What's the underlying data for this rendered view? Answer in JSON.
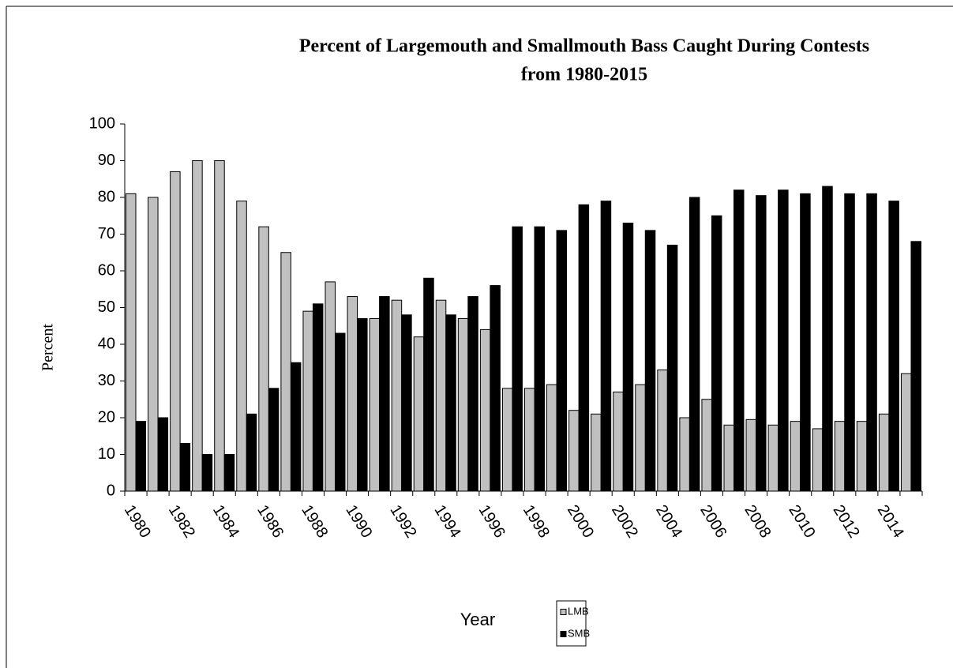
{
  "chart_data": {
    "type": "bar",
    "title": [
      "Percent of Largemouth and Smallmouth Bass Caught During Contests",
      "from 1980-2015"
    ],
    "x_label": "Year",
    "y_label": "Percent",
    "categories": [
      "1980",
      null,
      "1982",
      null,
      "1984",
      null,
      "1986",
      null,
      "1988",
      null,
      "1990",
      null,
      "1992",
      null,
      "1994",
      null,
      "1996",
      null,
      "1998",
      null,
      "2000",
      null,
      "2002",
      null,
      "2004",
      null,
      "2006",
      null,
      "2008",
      null,
      "2010",
      null,
      "2012",
      null,
      "2014",
      null
    ],
    "series": [
      {
        "name": "LMB",
        "color": "#c0c0c0",
        "values": [
          81,
          80,
          87,
          90,
          90,
          79,
          72,
          65,
          49,
          57,
          53,
          47,
          52,
          42,
          52,
          47,
          44,
          28,
          28,
          29,
          22,
          21,
          27,
          29,
          33,
          20,
          25,
          18,
          19.5,
          18,
          19,
          17,
          19,
          19,
          21,
          32
        ]
      },
      {
        "name": "SMB",
        "color": "#000000",
        "values": [
          19,
          20,
          13,
          10,
          10,
          21,
          28,
          35,
          51,
          43,
          47,
          53,
          48,
          58,
          48,
          53,
          56,
          72,
          72,
          71,
          78,
          79,
          73,
          71,
          67,
          80,
          75,
          82,
          80.5,
          82,
          81,
          83,
          81,
          81,
          79,
          68
        ]
      }
    ],
    "ylim": [
      0,
      100
    ],
    "yticks": [
      0,
      10,
      20,
      30,
      40,
      50,
      60,
      70,
      80,
      90,
      100
    ],
    "grid": false
  }
}
